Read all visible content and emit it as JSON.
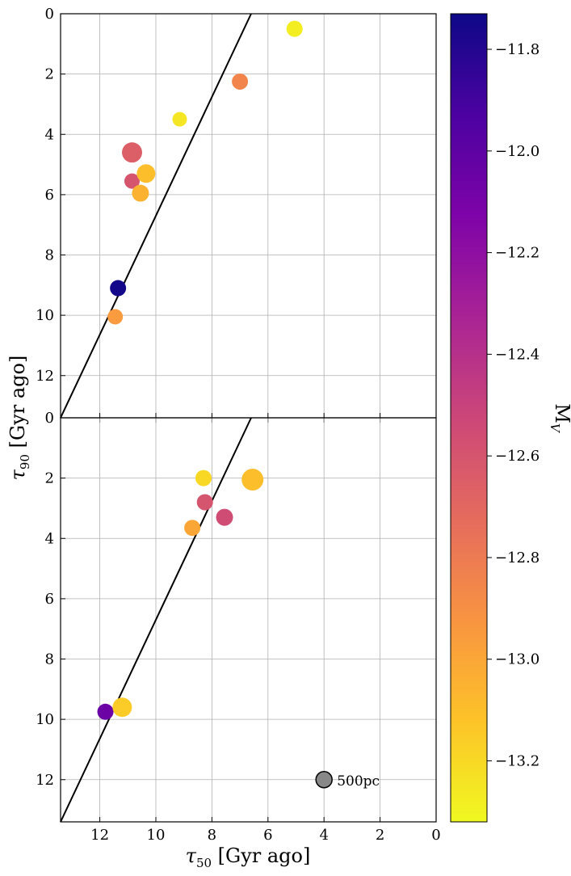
{
  "chart_data": {
    "type": "scatter",
    "xlabel": "τ50 [Gyr ago]",
    "ylabel": "τ90 [Gyr ago]",
    "xlim": [
      13.4,
      0
    ],
    "ylim": [
      13.4,
      0
    ],
    "x_ticks": [
      "12",
      "10",
      "8",
      "6",
      "4",
      "2",
      "0"
    ],
    "top_y_ticks": [
      "0",
      "2",
      "4",
      "6",
      "8",
      "10",
      "12"
    ],
    "bottom_y_ticks": [
      "0",
      "2",
      "4",
      "6",
      "8",
      "10",
      "12"
    ],
    "grid": true,
    "reference_line": {
      "points": [
        [
          13.4,
          13.4
        ],
        [
          6.6,
          0
        ]
      ]
    },
    "colorbar": {
      "label": "M_V",
      "range": [
        -13.32,
        -11.73
      ],
      "ticks": [
        "−11.8",
        "−12.0",
        "−12.2",
        "−12.4",
        "−12.6",
        "−12.8",
        "−13.0",
        "−13.2"
      ],
      "colormap": "plasma"
    },
    "size_reference": {
      "label": "500pc",
      "x": 4.0,
      "y": 12.0,
      "color": "#888888"
    },
    "panels": [
      {
        "points": [
          {
            "x": 5.05,
            "y": 0.5,
            "mv": -13.28,
            "size": 1.0
          },
          {
            "x": 7.0,
            "y": 2.25,
            "mv": -12.85,
            "size": 1.0
          },
          {
            "x": 9.15,
            "y": 3.5,
            "mv": -13.25,
            "size": 0.9
          },
          {
            "x": 10.85,
            "y": 4.6,
            "mv": -12.65,
            "size": 1.25
          },
          {
            "x": 10.85,
            "y": 5.55,
            "mv": -12.6,
            "size": 0.95
          },
          {
            "x": 10.35,
            "y": 5.3,
            "mv": -13.1,
            "size": 1.15
          },
          {
            "x": 10.55,
            "y": 5.95,
            "mv": -13.05,
            "size": 1.05
          },
          {
            "x": 11.35,
            "y": 9.1,
            "mv": -11.75,
            "size": 1.0
          },
          {
            "x": 11.45,
            "y": 10.05,
            "mv": -12.95,
            "size": 0.95
          }
        ]
      },
      {
        "points": [
          {
            "x": 8.3,
            "y": 2.0,
            "mv": -13.2,
            "size": 1.0
          },
          {
            "x": 6.55,
            "y": 2.05,
            "mv": -13.1,
            "size": 1.35
          },
          {
            "x": 8.25,
            "y": 2.8,
            "mv": -12.6,
            "size": 1.0
          },
          {
            "x": 7.55,
            "y": 3.3,
            "mv": -12.55,
            "size": 1.05
          },
          {
            "x": 8.7,
            "y": 3.65,
            "mv": -13.0,
            "size": 1.0
          },
          {
            "x": 11.8,
            "y": 9.75,
            "mv": -12.05,
            "size": 1.0
          },
          {
            "x": 11.2,
            "y": 9.6,
            "mv": -13.15,
            "size": 1.2
          }
        ]
      }
    ]
  }
}
